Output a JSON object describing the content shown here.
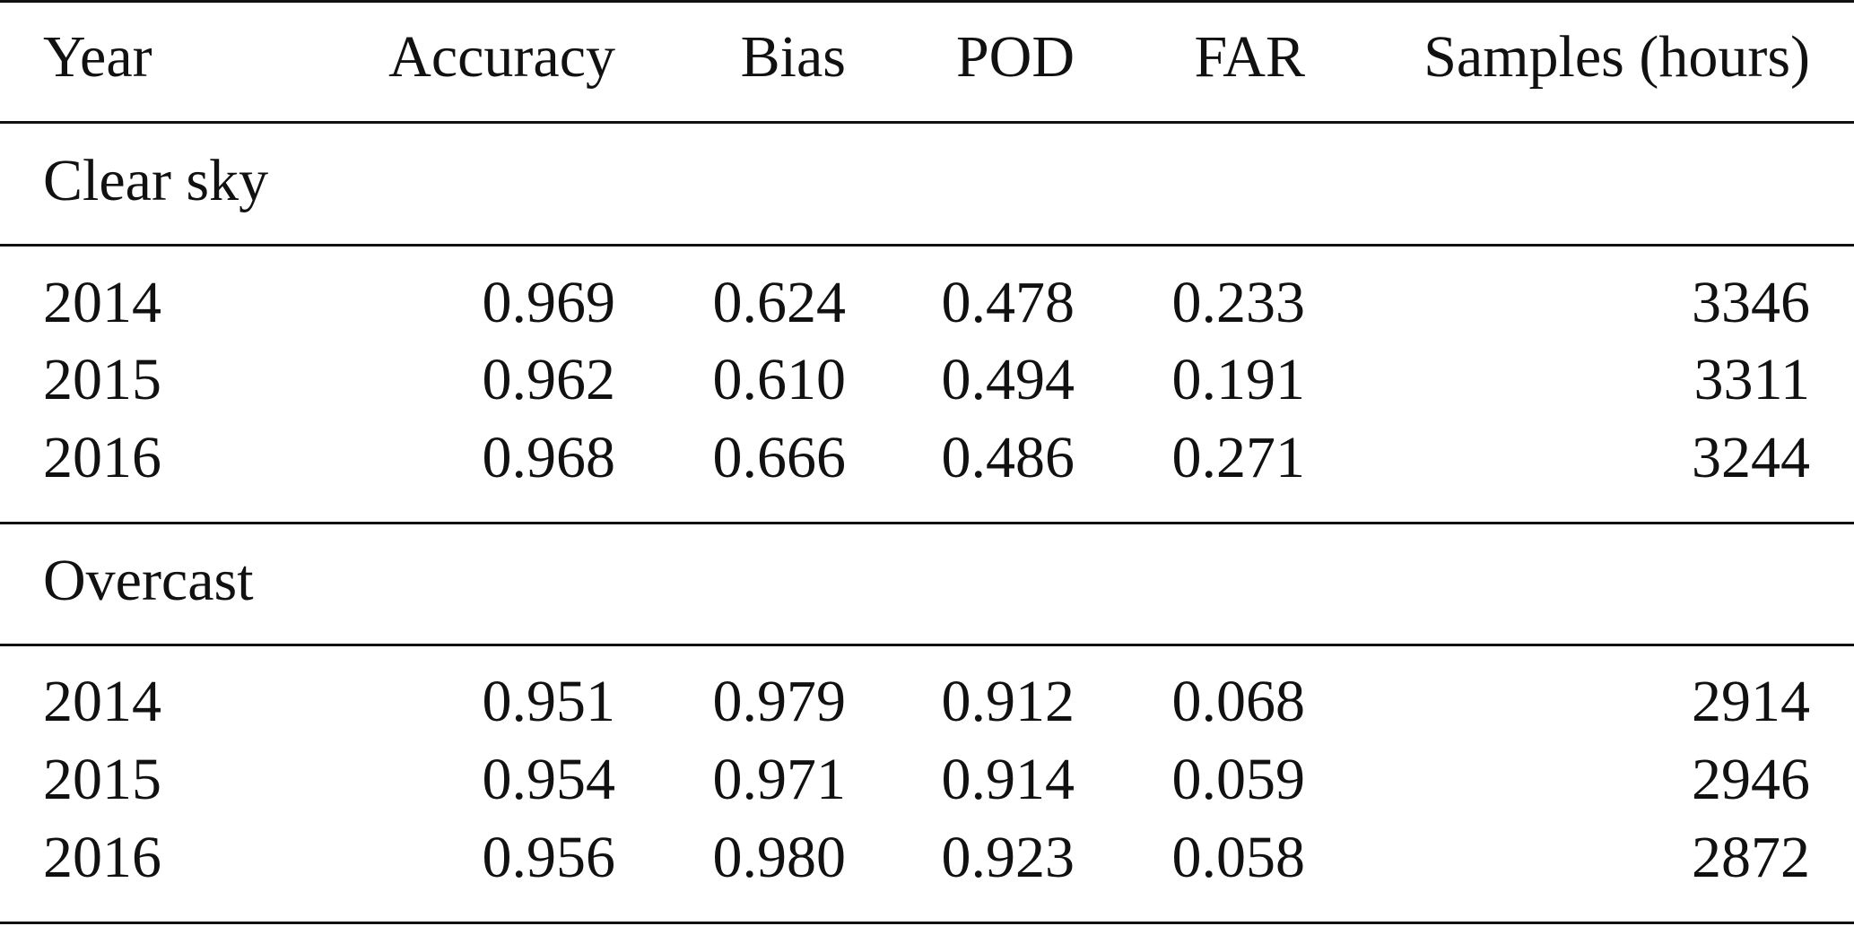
{
  "table": {
    "headers": {
      "year": "Year",
      "accuracy": "Accuracy",
      "bias": "Bias",
      "pod": "POD",
      "far": "FAR",
      "samples": "Samples (hours)"
    },
    "sections": [
      {
        "label": "Clear sky",
        "rows": [
          {
            "year": "2014",
            "accuracy": "0.969",
            "bias": "0.624",
            "pod": "0.478",
            "far": "0.233",
            "samples": "3346"
          },
          {
            "year": "2015",
            "accuracy": "0.962",
            "bias": "0.610",
            "pod": "0.494",
            "far": "0.191",
            "samples": "3311"
          },
          {
            "year": "2016",
            "accuracy": "0.968",
            "bias": "0.666",
            "pod": "0.486",
            "far": "0.271",
            "samples": "3244"
          }
        ]
      },
      {
        "label": "Overcast",
        "rows": [
          {
            "year": "2014",
            "accuracy": "0.951",
            "bias": "0.979",
            "pod": "0.912",
            "far": "0.068",
            "samples": "2914"
          },
          {
            "year": "2015",
            "accuracy": "0.954",
            "bias": "0.971",
            "pod": "0.914",
            "far": "0.059",
            "samples": "2946"
          },
          {
            "year": "2016",
            "accuracy": "0.956",
            "bias": "0.980",
            "pod": "0.923",
            "far": "0.058",
            "samples": "2872"
          }
        ]
      }
    ]
  }
}
